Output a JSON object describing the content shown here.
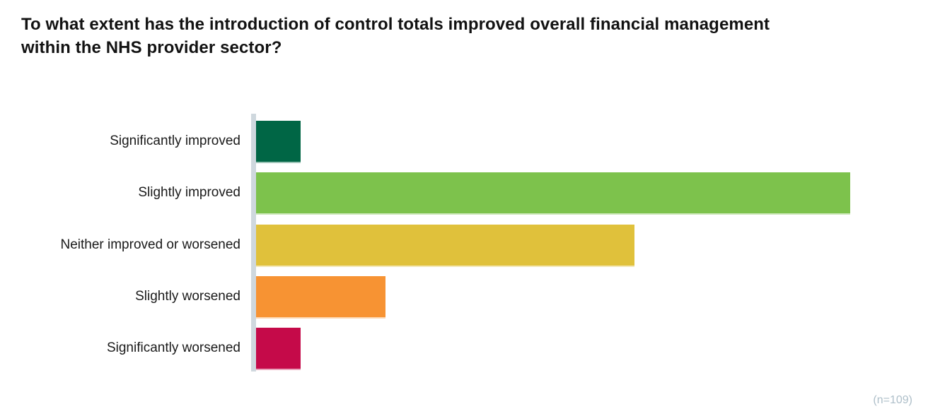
{
  "chart_data": {
    "type": "bar",
    "orientation": "horizontal",
    "title": "To what extent has the introduction of control totals improved overall financial management within the NHS provider sector?",
    "categories": [
      "Significantly improved",
      "Slightly improved",
      "Neither improved or worsened",
      "Slightly worsened",
      "Significantly worsened"
    ],
    "values": [
      3.7,
      49.6,
      31.6,
      10.8,
      3.7
    ],
    "value_note": "percent of respondents, estimated from bar lengths (no axis tick labels shown)",
    "xlim": [
      0,
      50
    ],
    "grid": false,
    "legend": false,
    "sample_size": 109,
    "sample_size_label": "(n=109)",
    "bar_colors": [
      "#006645",
      "#7DC24C",
      "#E0C13B",
      "#F79333",
      "#C50A49"
    ],
    "axis_line_color": "#CFD8DE",
    "title_color": "#121212",
    "label_color": "#1A1A1A",
    "footnote_color": "#AEBFC9"
  }
}
